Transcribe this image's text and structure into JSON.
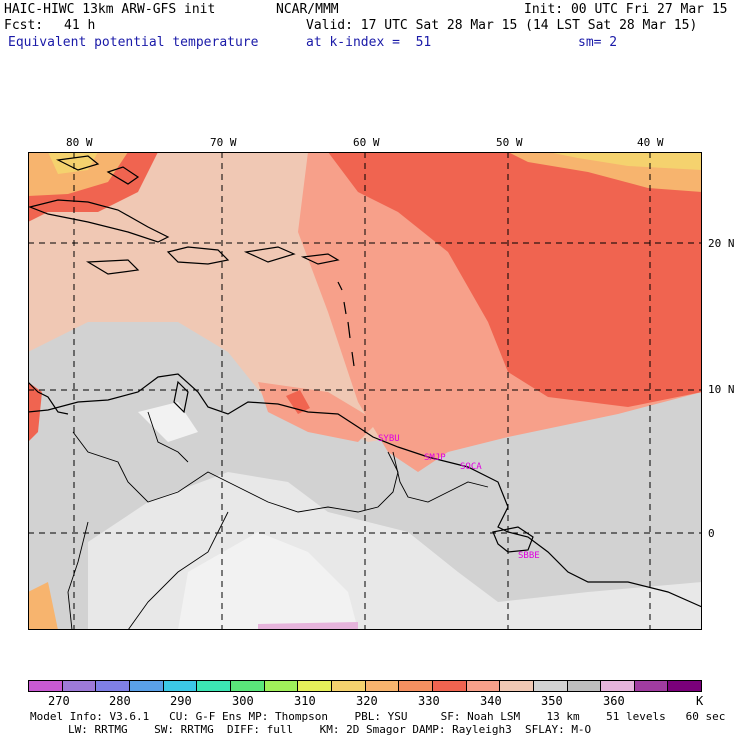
{
  "header": {
    "model": "HAIC-HIWC 13km ARW-GFS init",
    "org": "NCAR/MMM",
    "init": "Init: 00 UTC Fri 27 Mar 15",
    "fcst_label": "Fcst:",
    "fcst_value": "41 h",
    "valid": "Valid: 17 UTC Sat 28 Mar 15 (14 LST Sat 28 Mar 15)",
    "field": "Equivalent potential temperature",
    "level": "at k-index =  51",
    "smooth": "sm= 2"
  },
  "axes": {
    "lon_ticks": [
      "80 W",
      "70 W",
      "60 W",
      "50 W",
      "40 W"
    ],
    "lat_ticks": [
      "20 N",
      "10 N",
      "0"
    ]
  },
  "stations": [
    "SYBU",
    "SMJP",
    "SOCA",
    "SBBE"
  ],
  "colorbar": {
    "labels": [
      "270",
      "280",
      "290",
      "300",
      "310",
      "320",
      "330",
      "340",
      "350",
      "360",
      "K"
    ],
    "colors": [
      "#c85ad2",
      "#9e7ad8",
      "#7f7fe6",
      "#5aa0e8",
      "#3cc8e6",
      "#3ce6b4",
      "#5ae67a",
      "#a0f05a",
      "#e6f05a",
      "#f5d26e",
      "#f7b46e",
      "#f59060",
      "#f06450",
      "#f7a08a",
      "#f0c8b4",
      "#d2d2d2",
      "#bebebe",
      "#e6b4dc",
      "#a03ca0",
      "#7a007a"
    ]
  },
  "footer": {
    "line1": "Model Info: V3.6.1   CU: G-F Ens MP: Thompson    PBL: YSU     SF: Noah LSM    13 km    51 levels   60 sec",
    "line2": "LW: RRTMG    SW: RRTMG  DIFF: full    KM: 2D Smagor DAMP: Rayleigh3  SFLAY: M-O"
  }
}
